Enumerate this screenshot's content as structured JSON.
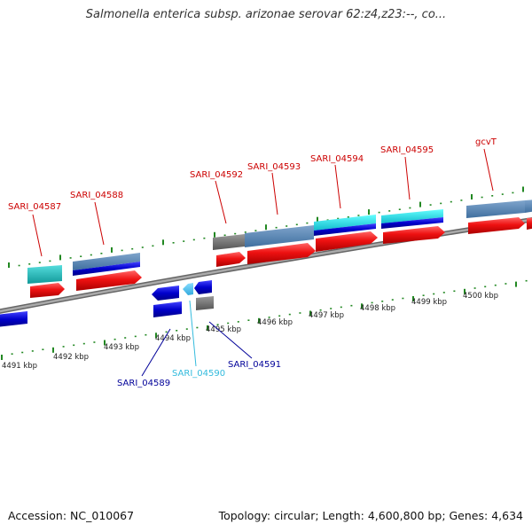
{
  "title": "Salmonella enterica subsp. arizonae serovar 62:z4,z23:--, co...",
  "footer": {
    "accession_label": "Accession:",
    "accession": "NC_010067",
    "topology_label": "Topology:",
    "topology": "circular",
    "length_label": "Length:",
    "length": "4,600,800 bp",
    "genes_label": "Genes:",
    "genes": "4,634"
  },
  "colors": {
    "label_forward": "#cc0000",
    "label_reverse": "#000099",
    "label_rna": "#33bbdd",
    "cds_forward": "#ee1111",
    "cds_reverse": "#0000cc",
    "pseudo": "#666666",
    "tick": "#228822",
    "backbone": "#888888"
  },
  "scale_labels": [
    "4491 kbp",
    "4492 kbp",
    "4493 kbp",
    "4494 kbp",
    "4495 kbp",
    "4496 kbp",
    "4497 kbp",
    "4498 kbp",
    "4499 kbp",
    "4500 kbp"
  ],
  "gene_labels": {
    "forward": [
      "SARI_04587",
      "SARI_04588",
      "SARI_04592",
      "SARI_04593",
      "SARI_04594",
      "SARI_04595",
      "gcvT"
    ],
    "reverse": [
      "SARI_04589",
      "SARI_04590",
      "SARI_04591"
    ]
  }
}
